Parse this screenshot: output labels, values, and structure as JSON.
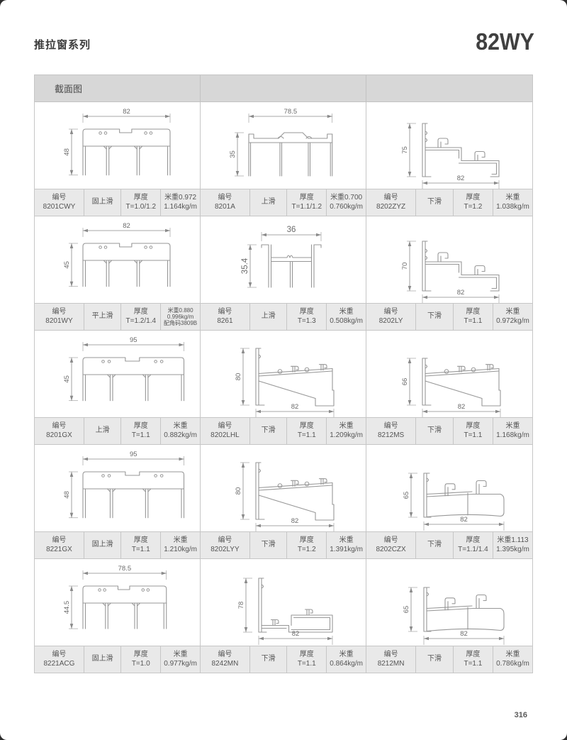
{
  "page": {
    "series_title": "推拉窗系列",
    "model": "82WY",
    "section_header": "截面图",
    "page_number": "316"
  },
  "labels": {
    "code": "编号",
    "thickness": "厚度"
  },
  "cells": [
    {
      "code": "8201CWY",
      "type": "固上滑",
      "thickness": "T=1.0/1.2",
      "weight_lines": [
        "米重0.972",
        "1.164kg/m"
      ],
      "drawing": {
        "shape": "frameTop",
        "width": "82",
        "height": "48"
      }
    },
    {
      "code": "8201A",
      "type": "上滑",
      "thickness": "T=1.1/1.2",
      "weight_lines": [
        "米重0.700",
        "0.760kg/m"
      ],
      "drawing": {
        "shape": "frameThin",
        "width": "78.5",
        "height": "35"
      }
    },
    {
      "code": "8202ZYZ",
      "type": "下滑",
      "thickness": "T=1.2",
      "weight_lines": [
        "米重",
        "1.038kg/m"
      ],
      "drawing": {
        "shape": "sillStep",
        "width": "82",
        "height": "75"
      }
    },
    {
      "code": "8201WY",
      "type": "平上滑",
      "thickness": "T=1.2/1.4",
      "weight_lines": [
        "米重0.880",
        "0.996kg/m",
        "配角码3809B"
      ],
      "drawing": {
        "shape": "frameTop",
        "width": "82",
        "height": "45"
      }
    },
    {
      "code": "8261",
      "type": "上滑",
      "thickness": "T=1.3",
      "weight_lines": [
        "米重",
        "0.508kg/m"
      ],
      "drawing": {
        "shape": "hMullion",
        "width": "36",
        "height": "35.4"
      }
    },
    {
      "code": "8202LY",
      "type": "下滑",
      "thickness": "T=1.1",
      "weight_lines": [
        "米重",
        "0.972kg/m"
      ],
      "drawing": {
        "shape": "sillStep",
        "width": "82",
        "height": "70"
      }
    },
    {
      "code": "8201GX",
      "type": "上滑",
      "thickness": "T=1.1",
      "weight_lines": [
        "米重",
        "0.882kg/m"
      ],
      "drawing": {
        "shape": "frameTop",
        "width": "95",
        "height": "45"
      }
    },
    {
      "code": "8202LHL",
      "type": "下滑",
      "thickness": "T=1.1",
      "weight_lines": [
        "米重",
        "1.209kg/m"
      ],
      "drawing": {
        "shape": "sillSlope",
        "width": "82",
        "height": "80"
      }
    },
    {
      "code": "8212MS",
      "type": "下滑",
      "thickness": "T=1.1",
      "weight_lines": [
        "米重",
        "1.168kg/m"
      ],
      "drawing": {
        "shape": "sillSlope",
        "width": "82",
        "height": "66"
      }
    },
    {
      "code": "8221GX",
      "type": "固上滑",
      "thickness": "T=1.1",
      "weight_lines": [
        "米重",
        "1.210kg/m"
      ],
      "drawing": {
        "shape": "frameTop",
        "width": "95",
        "height": "48"
      }
    },
    {
      "code": "8202LYY",
      "type": "下滑",
      "thickness": "T=1.2",
      "weight_lines": [
        "米重",
        "1.391kg/m"
      ],
      "drawing": {
        "shape": "sillSlope",
        "width": "82",
        "height": "80"
      }
    },
    {
      "code": "8202CZX",
      "type": "下滑",
      "thickness": "T=1.1/1.4",
      "weight_lines": [
        "米重1.113",
        "1.395kg/m"
      ],
      "drawing": {
        "shape": "sillHook",
        "width": "82",
        "height": "65"
      }
    },
    {
      "code": "8221ACG",
      "type": "固上滑",
      "thickness": "T=1.0",
      "weight_lines": [
        "米重",
        "0.977kg/m"
      ],
      "drawing": {
        "shape": "frameTop",
        "width": "78.5",
        "height": "44.5"
      }
    },
    {
      "code": "8242MN",
      "type": "下滑",
      "thickness": "T=1.1",
      "weight_lines": [
        "米重",
        "0.864kg/m"
      ],
      "drawing": {
        "shape": "sillL",
        "width": "82",
        "height": "78"
      }
    },
    {
      "code": "8212MN",
      "type": "下滑",
      "thickness": "T=1.1",
      "weight_lines": [
        "米重",
        "0.786kg/m"
      ],
      "drawing": {
        "shape": "sillHook",
        "width": "82",
        "height": "65"
      }
    }
  ]
}
